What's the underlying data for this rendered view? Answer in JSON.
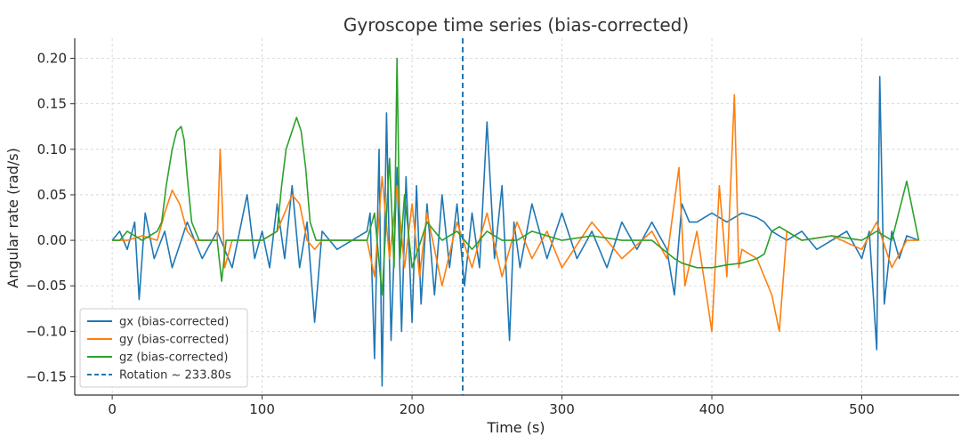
{
  "chart_data": {
    "type": "line",
    "title": "Gyroscope time series (bias-corrected)",
    "xlabel": "Time (s)",
    "ylabel": "Angular rate (rad/s)",
    "xlim": [
      -25,
      565
    ],
    "ylim": [
      -0.17,
      0.222
    ],
    "xticks": [
      0,
      100,
      200,
      300,
      400,
      500
    ],
    "xtick_labels": [
      "0",
      "100",
      "200",
      "300",
      "400",
      "500"
    ],
    "yticks": [
      -0.15,
      -0.1,
      -0.05,
      0.0,
      0.05,
      0.1,
      0.15,
      0.2
    ],
    "ytick_labels": [
      "−0.15",
      "−0.10",
      "−0.05",
      "0.00",
      "0.05",
      "0.10",
      "0.15",
      "0.20"
    ],
    "grid": true,
    "legend_position": "lower-left",
    "series": [
      {
        "name": "gx (bias-corrected)",
        "color": "#1f77b4",
        "x": [
          0,
          5,
          10,
          15,
          18,
          22,
          28,
          35,
          40,
          50,
          60,
          70,
          80,
          90,
          95,
          100,
          105,
          110,
          115,
          120,
          125,
          130,
          135,
          140,
          150,
          160,
          170,
          172,
          175,
          178,
          180,
          183,
          186,
          190,
          193,
          196,
          200,
          203,
          206,
          210,
          215,
          220,
          225,
          230,
          235,
          240,
          245,
          250,
          255,
          260,
          265,
          268,
          272,
          280,
          290,
          300,
          310,
          320,
          330,
          340,
          350,
          360,
          370,
          375,
          380,
          385,
          390,
          400,
          410,
          420,
          430,
          435,
          440,
          445,
          450,
          460,
          470,
          480,
          490,
          500,
          505,
          510,
          512,
          515,
          520,
          525,
          530,
          538
        ],
        "y": [
          0.0,
          0.01,
          -0.01,
          0.02,
          -0.065,
          0.03,
          -0.02,
          0.01,
          -0.03,
          0.02,
          -0.02,
          0.01,
          -0.03,
          0.05,
          -0.02,
          0.01,
          -0.03,
          0.04,
          -0.02,
          0.06,
          -0.03,
          0.02,
          -0.09,
          0.01,
          -0.01,
          0.0,
          0.01,
          0.03,
          -0.13,
          0.1,
          -0.16,
          0.14,
          -0.11,
          0.08,
          -0.1,
          0.07,
          -0.09,
          0.06,
          -0.07,
          0.04,
          -0.06,
          0.05,
          -0.03,
          0.04,
          -0.05,
          0.03,
          -0.03,
          0.13,
          -0.02,
          0.06,
          -0.11,
          0.02,
          -0.03,
          0.04,
          -0.02,
          0.03,
          -0.02,
          0.01,
          -0.03,
          0.02,
          -0.01,
          0.02,
          -0.01,
          -0.06,
          0.04,
          0.02,
          0.02,
          0.03,
          0.02,
          0.03,
          0.025,
          0.02,
          0.01,
          0.005,
          0.0,
          0.01,
          -0.01,
          0.0,
          0.01,
          -0.02,
          0.01,
          -0.12,
          0.18,
          -0.07,
          0.01,
          -0.02,
          0.005,
          0.0
        ]
      },
      {
        "name": "gy (bias-corrected)",
        "color": "#ff7f0e",
        "x": [
          0,
          10,
          20,
          30,
          35,
          40,
          45,
          50,
          55,
          60,
          70,
          72,
          75,
          80,
          90,
          100,
          110,
          115,
          120,
          125,
          130,
          135,
          140,
          150,
          160,
          170,
          175,
          180,
          185,
          190,
          195,
          200,
          205,
          210,
          220,
          230,
          240,
          250,
          260,
          270,
          280,
          290,
          300,
          320,
          340,
          360,
          370,
          378,
          382,
          390,
          400,
          405,
          410,
          415,
          418,
          420,
          430,
          440,
          445,
          450,
          460,
          480,
          500,
          510,
          520,
          530,
          538
        ],
        "y": [
          0.0,
          0.0,
          0.005,
          0.0,
          0.03,
          0.055,
          0.04,
          0.01,
          0.0,
          0.0,
          0.0,
          0.1,
          -0.03,
          0.0,
          0.0,
          0.0,
          0.01,
          0.03,
          0.05,
          0.04,
          0.0,
          -0.01,
          0.0,
          0.0,
          0.0,
          0.0,
          -0.04,
          0.07,
          -0.02,
          0.06,
          -0.03,
          0.04,
          -0.04,
          0.03,
          -0.05,
          0.02,
          -0.03,
          0.03,
          -0.04,
          0.02,
          -0.02,
          0.01,
          -0.03,
          0.02,
          -0.02,
          0.01,
          -0.02,
          0.08,
          -0.05,
          0.01,
          -0.1,
          0.06,
          -0.04,
          0.16,
          -0.03,
          -0.01,
          -0.02,
          -0.06,
          -0.1,
          0.01,
          0.0,
          0.005,
          -0.01,
          0.02,
          -0.03,
          0.0,
          0.0
        ]
      },
      {
        "name": "gz (bias-corrected)",
        "color": "#2ca02c",
        "x": [
          0,
          5,
          10,
          20,
          30,
          33,
          36,
          40,
          43,
          46,
          48,
          50,
          53,
          58,
          65,
          70,
          73,
          76,
          80,
          90,
          100,
          110,
          113,
          116,
          120,
          123,
          126,
          129,
          132,
          136,
          140,
          150,
          160,
          170,
          175,
          180,
          185,
          188,
          190,
          192,
          195,
          200,
          210,
          220,
          230,
          240,
          250,
          260,
          270,
          280,
          300,
          320,
          340,
          360,
          375,
          380,
          390,
          400,
          410,
          420,
          430,
          435,
          440,
          445,
          450,
          460,
          480,
          500,
          510,
          520,
          530,
          538
        ],
        "y": [
          0.0,
          0.0,
          0.01,
          0.0,
          0.01,
          0.02,
          0.06,
          0.1,
          0.12,
          0.125,
          0.11,
          0.07,
          0.02,
          0.0,
          0.0,
          0.0,
          -0.045,
          0.0,
          0.0,
          0.0,
          0.0,
          0.01,
          0.06,
          0.1,
          0.12,
          0.135,
          0.12,
          0.08,
          0.02,
          0.0,
          0.0,
          0.0,
          0.0,
          0.0,
          0.03,
          -0.06,
          0.09,
          -0.03,
          0.2,
          -0.02,
          0.05,
          -0.03,
          0.02,
          0.0,
          0.01,
          -0.01,
          0.01,
          0.0,
          0.0,
          0.01,
          0.0,
          0.005,
          0.0,
          0.0,
          -0.02,
          -0.025,
          -0.03,
          -0.03,
          -0.027,
          -0.025,
          -0.02,
          -0.015,
          0.01,
          0.015,
          0.01,
          0.0,
          0.005,
          0.0,
          0.01,
          0.0,
          0.065,
          0.0
        ]
      }
    ],
    "vline": {
      "x": 233.8,
      "label": "Rotation ~ 233.80s",
      "color": "#1f77b4",
      "style": "dashed"
    }
  }
}
